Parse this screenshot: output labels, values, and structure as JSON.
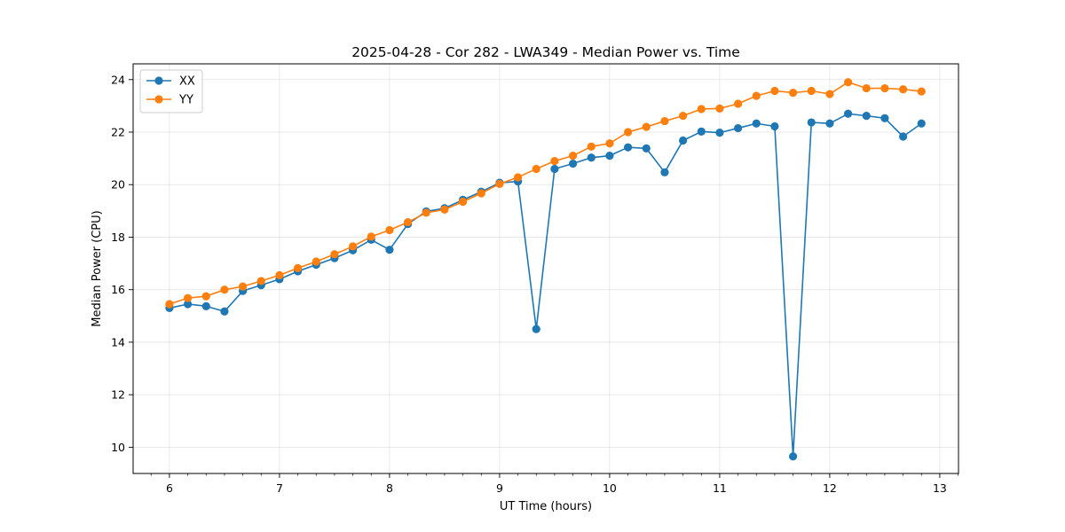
{
  "chart_data": {
    "type": "line",
    "title": "2025-04-28 - Cor 282 - LWA349 - Median Power vs. Time",
    "xlabel": "UT Time (hours)",
    "ylabel": "Median Power (CPU)",
    "xlim": [
      5.67,
      13.17
    ],
    "ylim": [
      9.0,
      24.6
    ],
    "xticks": [
      6,
      7,
      8,
      9,
      10,
      11,
      12,
      13
    ],
    "yticks": [
      10,
      12,
      14,
      16,
      18,
      20,
      22,
      24
    ],
    "grid": true,
    "legend_position": "top-left",
    "x": [
      6.0,
      6.1667,
      6.3333,
      6.5,
      6.6667,
      6.8333,
      7.0,
      7.1667,
      7.3333,
      7.5,
      7.6667,
      7.8333,
      8.0,
      8.1667,
      8.3333,
      8.5,
      8.6667,
      8.8333,
      9.0,
      9.1667,
      9.3333,
      9.5,
      9.6667,
      9.8333,
      10.0,
      10.1667,
      10.3333,
      10.5,
      10.6667,
      10.8333,
      11.0,
      11.1667,
      11.3333,
      11.5,
      11.6667,
      11.8333,
      12.0,
      12.1667,
      12.3333,
      12.5,
      12.6667,
      12.8333
    ],
    "series": [
      {
        "name": "XX",
        "color": "#1f77b4",
        "values": [
          15.3,
          15.45,
          15.37,
          15.17,
          15.95,
          16.17,
          16.4,
          16.7,
          16.95,
          17.2,
          17.5,
          17.9,
          17.52,
          18.5,
          18.98,
          19.1,
          19.42,
          19.73,
          20.07,
          20.12,
          14.5,
          20.6,
          20.8,
          21.03,
          21.1,
          21.42,
          21.38,
          20.47,
          21.68,
          22.02,
          21.98,
          22.15,
          22.33,
          22.22,
          9.65,
          22.37,
          22.33,
          22.7,
          22.62,
          22.53,
          21.83,
          22.33
        ]
      },
      {
        "name": "YY",
        "color": "#ff7f0e",
        "values": [
          15.45,
          15.68,
          15.75,
          16.0,
          16.12,
          16.33,
          16.55,
          16.82,
          17.07,
          17.35,
          17.65,
          18.02,
          18.27,
          18.57,
          18.93,
          19.05,
          19.35,
          19.67,
          20.03,
          20.28,
          20.6,
          20.9,
          21.1,
          21.45,
          21.57,
          22.0,
          22.2,
          22.42,
          22.62,
          22.88,
          22.9,
          23.08,
          23.38,
          23.57,
          23.5,
          23.57,
          23.45,
          23.9,
          23.67,
          23.67,
          23.63,
          23.55
        ]
      }
    ]
  }
}
